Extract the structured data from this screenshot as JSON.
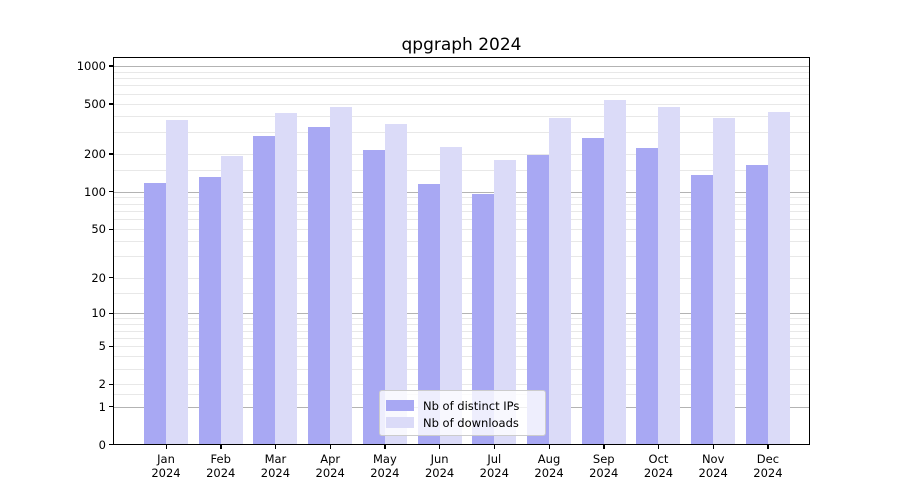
{
  "chart_data": {
    "type": "bar",
    "title": "qpgraph 2024",
    "categories": [
      "Jan",
      "Feb",
      "Mar",
      "Apr",
      "May",
      "Jun",
      "Jul",
      "Aug",
      "Sep",
      "Oct",
      "Nov",
      "Dec"
    ],
    "category_year": "2024",
    "series": [
      {
        "name": "Nb of distinct IPs",
        "color": "#a8a8f3",
        "values": [
          117,
          131,
          277,
          327,
          215,
          116,
          95,
          196,
          269,
          223,
          136,
          162
        ]
      },
      {
        "name": "Nb of downloads",
        "color": "#dbdbf8",
        "values": [
          372,
          194,
          425,
          470,
          345,
          227,
          180,
          383,
          534,
          474,
          383,
          432
        ]
      }
    ],
    "yscale": "log1p",
    "ylim": [
      0,
      1160
    ],
    "yticks": [
      0,
      1,
      2,
      5,
      10,
      20,
      50,
      100,
      200,
      500,
      1000
    ],
    "ytick_labels": [
      "0",
      "1",
      "2",
      "5",
      "10",
      "20",
      "50",
      "100",
      "200",
      "500",
      "1000"
    ],
    "major_gridlines": [
      1,
      10,
      100,
      1000
    ],
    "minor_gridlines": [
      1.5,
      2,
      3,
      4,
      5,
      6,
      7,
      8,
      9,
      15,
      20,
      30,
      40,
      50,
      60,
      70,
      80,
      90,
      150,
      200,
      300,
      400,
      500,
      600,
      700,
      800,
      900
    ],
    "grid": true,
    "legend_position": "lower center"
  },
  "legend": {
    "items": [
      {
        "label": "Nb of distinct IPs",
        "color": "#a8a8f3"
      },
      {
        "label": "Nb of downloads",
        "color": "#dbdbf8"
      }
    ]
  },
  "colors": {
    "bar_distinct_ips": "#a8a8f3",
    "bar_downloads": "#dbdbf8",
    "grid_major": "#b3b3b3",
    "grid_minor": "#e8e8e8",
    "spine": "#000000",
    "legend_border": "#cccccc"
  }
}
